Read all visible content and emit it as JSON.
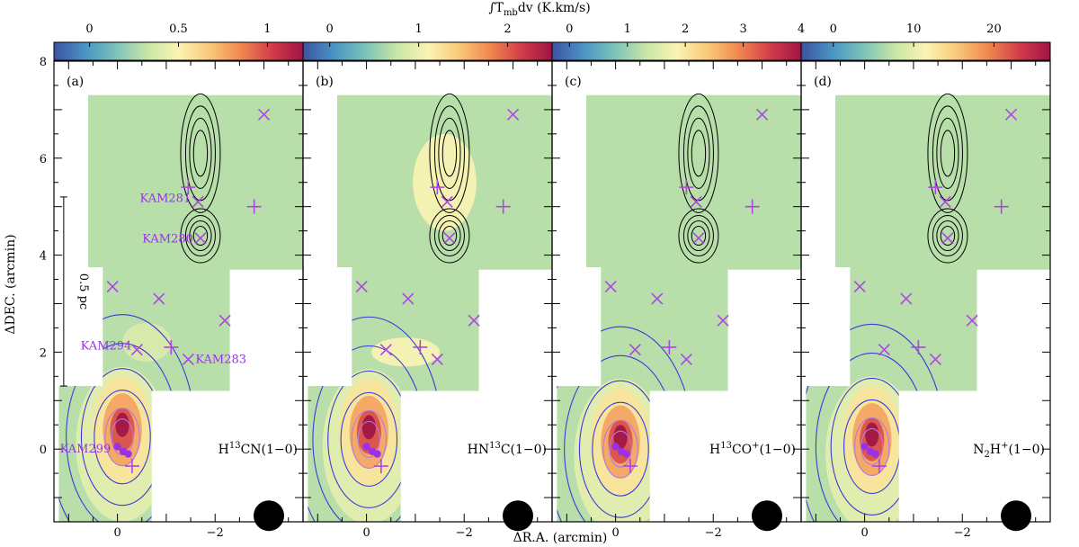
{
  "chart_data": {
    "type": "heatmap",
    "title": "∫T_mb dv (K.km/s)",
    "title_parts": [
      "∫T",
      "mb",
      "dv (K.km/s)"
    ],
    "xlabel": "ΔR.A. (arcmin)",
    "ylabel": "ΔDEC. (arcmin)",
    "xlim": [
      1.3,
      -3.8
    ],
    "ylim": [
      -1.5,
      8
    ],
    "xticks": [
      0,
      -2
    ],
    "xtick_labels": [
      "0",
      "−2"
    ],
    "yticks": [
      0,
      2,
      4,
      6,
      8
    ],
    "ytick_labels": [
      "0",
      "2",
      "4",
      "6",
      "8"
    ],
    "colormap": [
      "#3d52a1",
      "#4a94c4",
      "#7cc3ba",
      "#c7e6a6",
      "#fbf4b3",
      "#f9c97a",
      "#f0884e",
      "#d23d4a",
      "#9e1444"
    ],
    "scale_bar": {
      "label": "0.5 pc",
      "y_from": 1.3,
      "y_to": 5.2,
      "x": 1.1
    },
    "sources": [
      {
        "name": "KAM281",
        "x": -1.65,
        "y": 5.1
      },
      {
        "name": "KAM280",
        "x": -1.7,
        "y": 4.35
      },
      {
        "name": "KAM294",
        "x": -0.4,
        "y": 2.05
      },
      {
        "name": "KAM283",
        "x": -1.45,
        "y": 1.85
      },
      {
        "name": "KAM299",
        "x": -0.05,
        "y": 0.0
      }
    ],
    "crosses_x": [
      {
        "x": -3.0,
        "y": 6.9
      },
      {
        "x": -1.65,
        "y": 5.1
      },
      {
        "x": -1.7,
        "y": 4.35
      },
      {
        "x": 0.1,
        "y": 3.35
      },
      {
        "x": -0.85,
        "y": 3.1
      },
      {
        "x": -2.2,
        "y": 2.65
      },
      {
        "x": -0.4,
        "y": 2.05
      },
      {
        "x": -1.45,
        "y": 1.85
      }
    ],
    "crosses_plus": [
      {
        "x": -1.45,
        "y": 5.4
      },
      {
        "x": -2.8,
        "y": 5.0
      },
      {
        "x": -1.1,
        "y": 2.1
      },
      {
        "x": -0.3,
        "y": -0.35
      }
    ],
    "panels": [
      {
        "id": "(a)",
        "molecule": [
          "H",
          "13",
          "CN(1−0)"
        ],
        "sup_index": 1,
        "colorbar": {
          "min": -0.2,
          "max": 1.2,
          "ticks": [
            0,
            0.5,
            1
          ],
          "tick_labels": [
            "0",
            "0.5",
            "1"
          ]
        },
        "peak": {
          "x": -0.1,
          "y": 0.4
        }
      },
      {
        "id": "(b)",
        "molecule": [
          "HN",
          "13",
          "C(1−0)"
        ],
        "sup_index": 1,
        "colorbar": {
          "min": -0.3,
          "max": 2.5,
          "ticks": [
            0,
            1,
            2
          ],
          "tick_labels": [
            "0",
            "1",
            "2"
          ]
        },
        "peak": {
          "x": -0.05,
          "y": 0.35
        }
      },
      {
        "id": "(c)",
        "molecule": [
          "H",
          "13",
          "CO",
          "+",
          "(1−0)"
        ],
        "sup_index": 1,
        "colorbar": {
          "min": -0.3,
          "max": 4.0,
          "ticks": [
            0,
            1,
            2,
            3,
            4
          ],
          "tick_labels": [
            "0",
            "1",
            "2",
            "3",
            "4"
          ]
        },
        "peak": {
          "x": -0.1,
          "y": 0.15
        }
      },
      {
        "id": "(d)",
        "molecule": [
          "N",
          "2",
          "H",
          "+",
          "(1−0)"
        ],
        "sup_index": 0,
        "colorbar": {
          "min": -4,
          "max": 27,
          "ticks": [
            0,
            10,
            20
          ],
          "tick_labels": [
            "0",
            "10",
            "20"
          ]
        },
        "peak": {
          "x": -0.15,
          "y": 0.2
        }
      }
    ]
  }
}
